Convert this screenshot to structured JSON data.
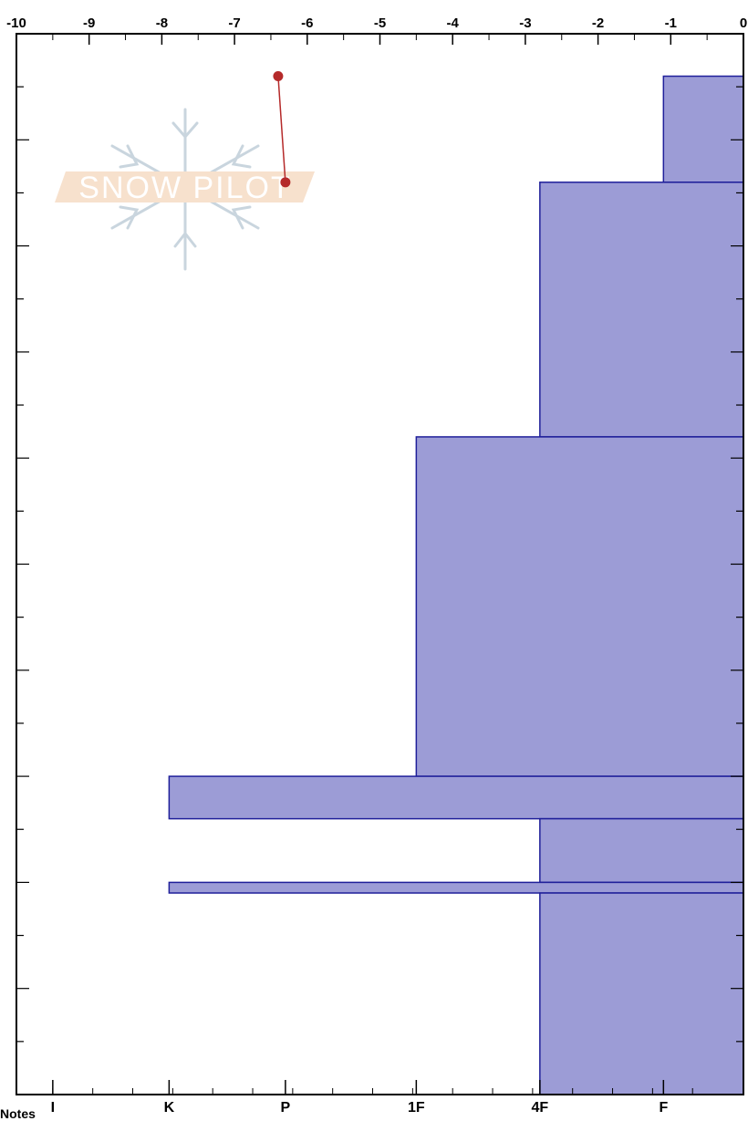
{
  "chart_data": {
    "type": "snow-profile",
    "temperature_axis": {
      "ticks": [
        "-10",
        "-9",
        "-8",
        "-7",
        "-6",
        "-5",
        "-4",
        "-3",
        "-2",
        "-1",
        "0"
      ],
      "range": [
        -10,
        0
      ],
      "position": "top"
    },
    "hardness_axis": {
      "ticks": [
        "I",
        "K",
        "P",
        "1F",
        "4F",
        "F"
      ],
      "position": "bottom"
    },
    "depth_axis": {
      "range": [
        0,
        100
      ],
      "direction": "top-to-bottom",
      "labels_visible": false
    },
    "hardness_layers": [
      {
        "top": 4,
        "bottom": 14,
        "value": -1.1
      },
      {
        "top": 14,
        "bottom": 38,
        "value": -2.8
      },
      {
        "top": 38,
        "bottom": 70,
        "value": -4.5
      },
      {
        "top": 70,
        "bottom": 74,
        "value": -7.9
      },
      {
        "top": 74,
        "bottom": 80,
        "value": -2.8
      },
      {
        "top": 80,
        "bottom": 81,
        "value": -7.9
      },
      {
        "top": 81,
        "bottom": 100,
        "value": -2.8
      }
    ],
    "temperature_profile": [
      {
        "temp": -6.4,
        "depth": 4
      },
      {
        "temp": -6.3,
        "depth": 14
      }
    ],
    "colors": {
      "layer_fill": "#9c9cd6",
      "layer_stroke": "#1f1f9a",
      "temperature_line": "#b52a2a"
    },
    "watermark_text": "SNOW PILOT",
    "grid": false
  },
  "notes_label": "Notes"
}
